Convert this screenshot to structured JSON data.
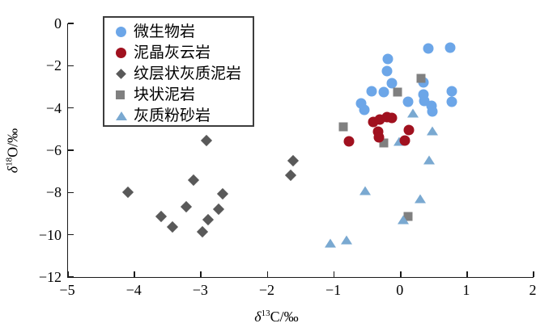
{
  "figure": {
    "background": "#ffffff"
  },
  "axes": {
    "x": {
      "delta": "δ",
      "sup": "13",
      "rest": "C/‰"
    },
    "y": {
      "delta": "δ",
      "sup": "18",
      "rest": "O/‰"
    }
  },
  "chart_data": {
    "type": "scatter",
    "title": "",
    "xlabel": "δ13C/‰",
    "ylabel": "δ18O/‰",
    "xlim": [
      -5,
      2
    ],
    "ylim": [
      -12,
      0
    ],
    "x_ticks": [
      -5,
      -4,
      -3,
      -2,
      -1,
      0,
      1,
      2
    ],
    "y_ticks": [
      0,
      -2,
      -4,
      -6,
      -8,
      -10,
      -12
    ],
    "grid": false,
    "legend_position": "upper-left-inside",
    "series": [
      {
        "name": "微生物岩",
        "marker": "circle",
        "color": "#6CA6E8",
        "points": [
          [
            0.42,
            -1.18
          ],
          [
            0.74,
            -1.15
          ],
          [
            -0.19,
            -1.68
          ],
          [
            -0.2,
            -2.25
          ],
          [
            -0.13,
            -2.82
          ],
          [
            0.34,
            -2.79
          ],
          [
            -0.44,
            -3.21
          ],
          [
            -0.25,
            -3.24
          ],
          [
            0.77,
            -3.21
          ],
          [
            0.35,
            -3.36
          ],
          [
            0.36,
            -3.66
          ],
          [
            0.11,
            -3.7
          ],
          [
            -0.59,
            -3.78
          ],
          [
            -0.55,
            -4.08
          ],
          [
            0.47,
            -3.89
          ],
          [
            0.48,
            -4.16
          ],
          [
            0.77,
            -3.7
          ]
        ]
      },
      {
        "name": "泥晶灰云岩",
        "marker": "circle",
        "color": "#A0111F",
        "points": [
          [
            -0.77,
            -5.57
          ],
          [
            -0.41,
            -4.66
          ],
          [
            -0.31,
            -4.54
          ],
          [
            -0.2,
            -4.43
          ],
          [
            -0.13,
            -4.47
          ],
          [
            -0.34,
            -5.11
          ],
          [
            -0.32,
            -5.38
          ],
          [
            0.12,
            -5.04
          ],
          [
            0.06,
            -5.55
          ]
        ]
      },
      {
        "name": "纹层状灰质泥岩",
        "marker": "diamond",
        "color": "#595959",
        "points": [
          [
            -2.92,
            -5.53
          ],
          [
            -1.62,
            -6.49
          ],
          [
            -1.65,
            -7.18
          ],
          [
            -3.11,
            -7.4
          ],
          [
            -4.1,
            -7.98
          ],
          [
            -2.68,
            -8.05
          ],
          [
            -3.22,
            -8.66
          ],
          [
            -2.74,
            -8.78
          ],
          [
            -3.6,
            -9.12
          ],
          [
            -2.89,
            -9.27
          ],
          [
            -3.43,
            -9.62
          ],
          [
            -2.98,
            -9.85
          ]
        ]
      },
      {
        "name": "块状泥岩",
        "marker": "square",
        "color": "#808080",
        "points": [
          [
            0.31,
            -2.6
          ],
          [
            -0.05,
            -3.24
          ],
          [
            -0.86,
            -4.89
          ],
          [
            -0.25,
            -5.65
          ],
          [
            0.11,
            -9.12
          ]
        ]
      },
      {
        "name": "灰质粉砂岩",
        "marker": "triangle",
        "color": "#7AA9D1",
        "points": [
          [
            0.18,
            -4.24
          ],
          [
            0.48,
            -5.08
          ],
          [
            -0.02,
            -5.57
          ],
          [
            0.43,
            -6.45
          ],
          [
            -0.53,
            -7.9
          ],
          [
            0.29,
            -8.28
          ],
          [
            0.04,
            -9.27
          ],
          [
            -0.81,
            -10.23
          ],
          [
            -1.06,
            -10.38
          ]
        ]
      }
    ]
  }
}
